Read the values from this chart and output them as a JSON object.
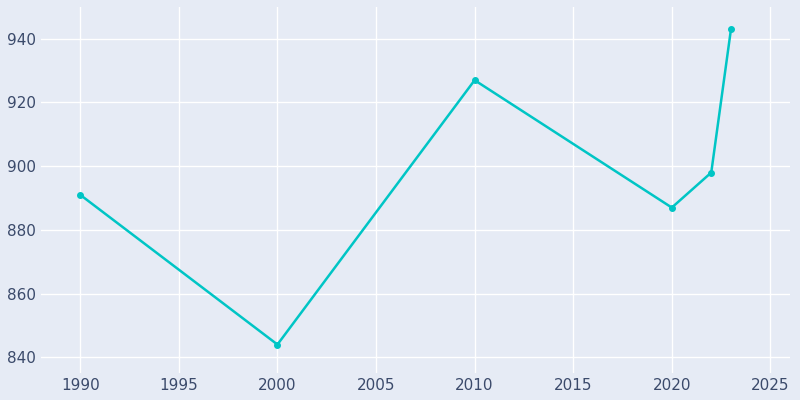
{
  "years": [
    1990,
    2000,
    2010,
    2020,
    2022,
    2023
  ],
  "population": [
    891,
    844,
    927,
    887,
    898,
    943
  ],
  "line_color": "#00C5C5",
  "background_color": "#E6EBF5",
  "grid_color": "#FFFFFF",
  "text_color": "#3B4A6B",
  "xlim": [
    1988,
    2026
  ],
  "ylim": [
    835,
    950
  ],
  "xticks": [
    1990,
    1995,
    2000,
    2005,
    2010,
    2015,
    2020,
    2025
  ],
  "yticks": [
    840,
    860,
    880,
    900,
    920,
    940
  ],
  "line_width": 1.8,
  "marker": "o",
  "marker_size": 4
}
